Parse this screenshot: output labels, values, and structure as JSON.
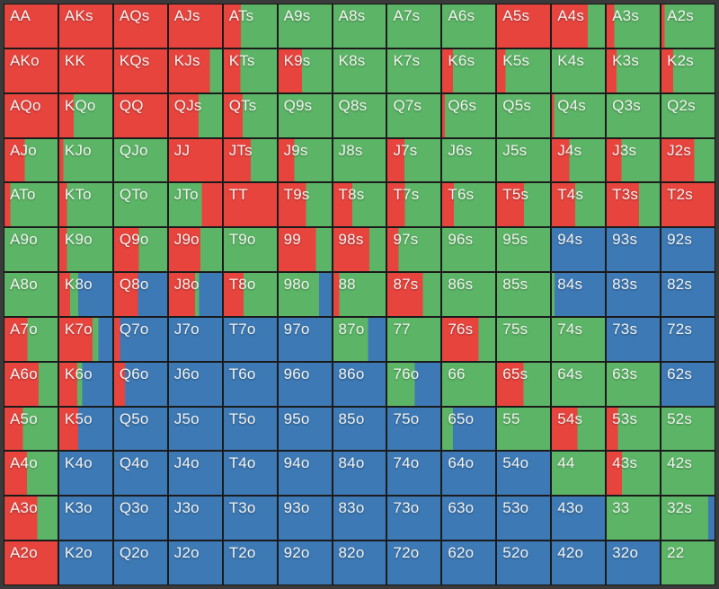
{
  "title": "poker-preflop-range-grid",
  "colors": {
    "raise_red": "#e8443e",
    "call_green": "#5cb566",
    "fold_blue": "#3d79b4",
    "frame": "#3a3a3a",
    "grid_line": "#1b1b1b",
    "label_text": "#f4f4f2"
  },
  "legend": {
    "r": "raise",
    "g": "call",
    "b": "fold"
  },
  "chart_data": {
    "type": "heatmap",
    "description": "13x13 poker preflop hand matrix. Each cell lists vertical color bands left-to-right as color:percent-of-cell-width. r=red(raise), g=green(call), b=blue(fold).",
    "grid_size": [
      13,
      13
    ],
    "rows": [
      [
        [
          "AA",
          "r:100"
        ],
        [
          "AKs",
          "r:100"
        ],
        [
          "AQs",
          "r:100"
        ],
        [
          "AJs",
          "r:100"
        ],
        [
          "ATs",
          "r:32,g:68"
        ],
        [
          "A9s",
          "g:100"
        ],
        [
          "A8s",
          "g:100"
        ],
        [
          "A7s",
          "g:100"
        ],
        [
          "A6s",
          "g:100"
        ],
        [
          "A5s",
          "r:100"
        ],
        [
          "A4s",
          "r:68,g:32"
        ],
        [
          "A3s",
          "r:14,g:86"
        ],
        [
          "A2s",
          "r:6,g:94"
        ]
      ],
      [
        [
          "AKo",
          "r:100"
        ],
        [
          "KK",
          "r:100"
        ],
        [
          "KQs",
          "r:100"
        ],
        [
          "KJs",
          "r:77,g:23"
        ],
        [
          "KTs",
          "r:31,g:69"
        ],
        [
          "K9s",
          "r:44,g:56"
        ],
        [
          "K8s",
          "g:100"
        ],
        [
          "K7s",
          "g:100"
        ],
        [
          "K6s",
          "r:20,g:80"
        ],
        [
          "K5s",
          "r:16,g:84"
        ],
        [
          "K4s",
          "g:100"
        ],
        [
          "K3s",
          "r:19,g:81"
        ],
        [
          "K2s",
          "r:22,g:78"
        ]
      ],
      [
        [
          "AQo",
          "r:100"
        ],
        [
          "KQo",
          "r:27,g:73"
        ],
        [
          "QQ",
          "r:100"
        ],
        [
          "QJs",
          "r:56,g:44"
        ],
        [
          "QTs",
          "r:36,g:64"
        ],
        [
          "Q9s",
          "g:100"
        ],
        [
          "Q8s",
          "g:100"
        ],
        [
          "Q7s",
          "g:100"
        ],
        [
          "Q6s",
          "r:5,g:95"
        ],
        [
          "Q5s",
          "g:100"
        ],
        [
          "Q4s",
          "r:4,g:96"
        ],
        [
          "Q3s",
          "g:100"
        ],
        [
          "Q2s",
          "g:100"
        ]
      ],
      [
        [
          "AJo",
          "r:38,g:62"
        ],
        [
          "KJo",
          "r:8,g:92"
        ],
        [
          "QJo",
          "g:100"
        ],
        [
          "JJ",
          "r:100"
        ],
        [
          "JTs",
          "r:51,g:49"
        ],
        [
          "J9s",
          "r:30,g:70"
        ],
        [
          "J8s",
          "g:100"
        ],
        [
          "J7s",
          "r:32,g:68"
        ],
        [
          "J6s",
          "g:100"
        ],
        [
          "J5s",
          "g:100"
        ],
        [
          "J4s",
          "r:33,g:67"
        ],
        [
          "J3s",
          "r:28,g:72"
        ],
        [
          "J2s",
          "r:62,g:38"
        ]
      ],
      [
        [
          "ATo",
          "r:11,g:89"
        ],
        [
          "KTo",
          "r:14,g:86"
        ],
        [
          "QTo",
          "g:100"
        ],
        [
          "JTo",
          "g:62,r:38"
        ],
        [
          "TT",
          "r:100"
        ],
        [
          "T9s",
          "r:52,g:48"
        ],
        [
          "T8s",
          "r:36,g:64"
        ],
        [
          "T7s",
          "r:33,g:67"
        ],
        [
          "T6s",
          "r:22,g:78"
        ],
        [
          "T5s",
          "r:51,g:49"
        ],
        [
          "T4s",
          "r:44,g:56"
        ],
        [
          "T3s",
          "r:61,g:39"
        ],
        [
          "T2s",
          "r:100"
        ]
      ],
      [
        [
          "A9o",
          "g:100"
        ],
        [
          "K9o",
          "r:14,g:86"
        ],
        [
          "Q9o",
          "r:47,g:53"
        ],
        [
          "J9o",
          "r:59,g:41"
        ],
        [
          "T9o",
          "g:100"
        ],
        [
          "99",
          "r:70,g:30"
        ],
        [
          "98s",
          "r:69,g:31"
        ],
        [
          "97s",
          "r:21,g:79"
        ],
        [
          "96s",
          "g:100"
        ],
        [
          "95s",
          "g:100"
        ],
        [
          "94s",
          "b:100"
        ],
        [
          "93s",
          "b:100"
        ],
        [
          "92s",
          "b:100"
        ]
      ],
      [
        [
          "A8o",
          "g:100"
        ],
        [
          "K8o",
          "r:20,g:16,b:64"
        ],
        [
          "Q8o",
          "r:45,b:55"
        ],
        [
          "J8o",
          "r:49,g:8,b:43"
        ],
        [
          "T8o",
          "r:37,g:63"
        ],
        [
          "98o",
          "g:76,b:24"
        ],
        [
          "88",
          "r:11,g:89"
        ],
        [
          "87s",
          "r:67,g:33"
        ],
        [
          "86s",
          "g:100"
        ],
        [
          "85s",
          "g:100"
        ],
        [
          "84s",
          "g:5,b:95"
        ],
        [
          "83s",
          "b:100"
        ],
        [
          "82s",
          "b:100"
        ]
      ],
      [
        [
          "A7o",
          "r:43,g:57"
        ],
        [
          "K7o",
          "r:63,g:11,b:26"
        ],
        [
          "Q7o",
          "r:11,b:89"
        ],
        [
          "J7o",
          "b:100"
        ],
        [
          "T7o",
          "b:100"
        ],
        [
          "97o",
          "b:100"
        ],
        [
          "87o",
          "g:66,b:34"
        ],
        [
          "77",
          "g:100"
        ],
        [
          "76s",
          "r:69,g:31"
        ],
        [
          "75s",
          "g:100"
        ],
        [
          "74s",
          "g:100"
        ],
        [
          "73s",
          "b:100"
        ],
        [
          "72s",
          "b:100"
        ]
      ],
      [
        [
          "A6o",
          "r:64,g:36"
        ],
        [
          "K6o",
          "r:34,g:9,b:57"
        ],
        [
          "Q6o",
          "r:20,b:80"
        ],
        [
          "J6o",
          "b:100"
        ],
        [
          "T6o",
          "b:100"
        ],
        [
          "96o",
          "b:100"
        ],
        [
          "86o",
          "b:100"
        ],
        [
          "76o",
          "g:52,b:48"
        ],
        [
          "66",
          "g:100"
        ],
        [
          "65s",
          "r:50,g:50"
        ],
        [
          "64s",
          "g:100"
        ],
        [
          "63s",
          "g:100"
        ],
        [
          "62s",
          "b:100"
        ]
      ],
      [
        [
          "A5o",
          "r:35,g:65"
        ],
        [
          "K5o",
          "r:36,b:64"
        ],
        [
          "Q5o",
          "b:100"
        ],
        [
          "J5o",
          "b:100"
        ],
        [
          "T5o",
          "b:100"
        ],
        [
          "95o",
          "b:100"
        ],
        [
          "85o",
          "b:100"
        ],
        [
          "75o",
          "b:100"
        ],
        [
          "65o",
          "g:20,b:80"
        ],
        [
          "55",
          "g:100"
        ],
        [
          "54s",
          "r:48,g:52"
        ],
        [
          "53s",
          "r:21,g:79"
        ],
        [
          "52s",
          "g:100"
        ]
      ],
      [
        [
          "A4o",
          "r:42,g:58"
        ],
        [
          "K4o",
          "b:100"
        ],
        [
          "Q4o",
          "b:100"
        ],
        [
          "J4o",
          "b:100"
        ],
        [
          "T4o",
          "b:100"
        ],
        [
          "94o",
          "b:100"
        ],
        [
          "84o",
          "b:100"
        ],
        [
          "74o",
          "b:100"
        ],
        [
          "64o",
          "b:100"
        ],
        [
          "54o",
          "b:100"
        ],
        [
          "44",
          "g:100"
        ],
        [
          "43s",
          "r:29,g:71"
        ],
        [
          "42s",
          "g:100"
        ]
      ],
      [
        [
          "A3o",
          "r:62,g:38"
        ],
        [
          "K3o",
          "b:100"
        ],
        [
          "Q3o",
          "b:100"
        ],
        [
          "J3o",
          "b:100"
        ],
        [
          "T3o",
          "b:100"
        ],
        [
          "93o",
          "b:100"
        ],
        [
          "83o",
          "b:100"
        ],
        [
          "73o",
          "b:100"
        ],
        [
          "63o",
          "b:100"
        ],
        [
          "53o",
          "b:100"
        ],
        [
          "43o",
          "b:100"
        ],
        [
          "33",
          "g:100"
        ],
        [
          "32s",
          "g:88,b:12"
        ]
      ],
      [
        [
          "A2o",
          "r:100"
        ],
        [
          "K2o",
          "b:100"
        ],
        [
          "Q2o",
          "b:100"
        ],
        [
          "J2o",
          "b:100"
        ],
        [
          "T2o",
          "b:100"
        ],
        [
          "92o",
          "b:100"
        ],
        [
          "82o",
          "b:100"
        ],
        [
          "72o",
          "b:100"
        ],
        [
          "62o",
          "b:100"
        ],
        [
          "52o",
          "b:100"
        ],
        [
          "42o",
          "b:100"
        ],
        [
          "32o",
          "b:100"
        ],
        [
          "22",
          "g:100"
        ]
      ]
    ]
  }
}
